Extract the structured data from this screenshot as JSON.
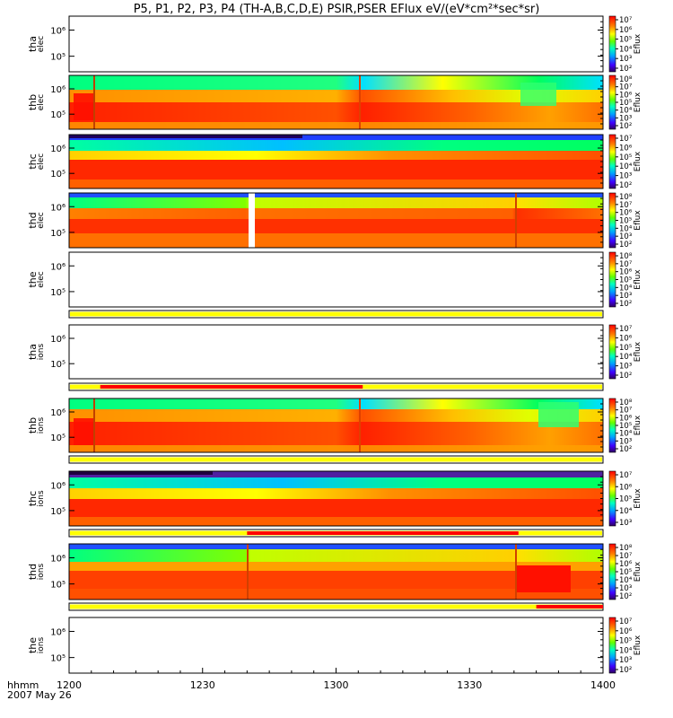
{
  "chart_data": {
    "type": "heatmap",
    "title": "P5, P1, P2, P3, P4 (TH-A,B,C,D,E) PSIR,PSER EFlux eV/(eV*cm²*sec*sr)",
    "x_axis": {
      "label_top": "hhmm",
      "label_bottom": "2007 May 26",
      "ticks": [
        "1200",
        "1230",
        "1300",
        "1330",
        "1400"
      ]
    },
    "colorbar_label": "Eflux",
    "panels": [
      {
        "name": "tha-elec",
        "line1": "tha",
        "line2": "elec",
        "has_data": false,
        "yticks": [
          "10⁶",
          "10⁵"
        ],
        "cbar_ticks": [
          "10⁷",
          "10⁶",
          "10⁵",
          "10⁴",
          "10³",
          "10²"
        ]
      },
      {
        "name": "thb-elec",
        "line1": "thb",
        "line2": "elec",
        "has_data": true,
        "yticks": [
          "10⁶",
          "10⁵"
        ],
        "cbar_ticks": [
          "10⁸",
          "10⁷",
          "10⁶",
          "10⁵",
          "10⁴",
          "10³",
          "10²"
        ]
      },
      {
        "name": "thc-elec",
        "line1": "thc",
        "line2": "elec",
        "has_data": true,
        "yticks": [
          "10⁶",
          "10⁵"
        ],
        "cbar_ticks": [
          "10⁷",
          "10⁶",
          "10⁵",
          "10⁴",
          "10³",
          "10²"
        ]
      },
      {
        "name": "thd-elec",
        "line1": "thd",
        "line2": "elec",
        "has_data": true,
        "yticks": [
          "10⁶",
          "10⁵"
        ],
        "cbar_ticks": [
          "10⁸",
          "10⁷",
          "10⁶",
          "10⁵",
          "10⁴",
          "10³",
          "10²"
        ]
      },
      {
        "name": "the-elec",
        "line1": "the",
        "line2": "elec",
        "has_data": false,
        "yticks": [
          "10⁶",
          "10⁵"
        ],
        "cbar_ticks": [
          "10⁸",
          "10⁷",
          "10⁶",
          "10⁵",
          "10⁴",
          "10³",
          "10²"
        ]
      },
      {
        "name": "tha-ions",
        "line1": "tha",
        "line2": "ions",
        "has_data": false,
        "yticks": [
          "10⁶",
          "10⁵"
        ],
        "cbar_ticks": [
          "10⁷",
          "10⁶",
          "10⁵",
          "10⁴",
          "10³",
          "10²"
        ]
      },
      {
        "name": "thb-ions",
        "line1": "thb",
        "line2": "ions",
        "has_data": true,
        "yticks": [
          "10⁶",
          "10⁵"
        ],
        "cbar_ticks": [
          "10⁸",
          "10⁷",
          "10⁶",
          "10⁵",
          "10⁴",
          "10³",
          "10²"
        ]
      },
      {
        "name": "thc-ions",
        "line1": "thc",
        "line2": "ions",
        "has_data": true,
        "yticks": [
          "10⁶",
          "10⁵"
        ],
        "cbar_ticks": [
          "10⁷",
          "10⁶",
          "10⁵",
          "10⁴",
          "10³"
        ]
      },
      {
        "name": "thd-ions",
        "line1": "thd",
        "line2": "ions",
        "has_data": true,
        "yticks": [
          "10⁶",
          "10⁵"
        ],
        "cbar_ticks": [
          "10⁸",
          "10⁷",
          "10⁶",
          "10⁵",
          "10⁴",
          "10³",
          "10²"
        ]
      },
      {
        "name": "the-ions",
        "line1": "the",
        "line2": "ions",
        "has_data": false,
        "yticks": [
          "10⁶",
          "10⁵"
        ],
        "cbar_ticks": [
          "10⁷",
          "10⁶",
          "10⁵",
          "10⁴",
          "10³",
          "10²"
        ]
      }
    ],
    "mode_bars": [
      {
        "name": "mode-bar-1",
        "segments": [
          {
            "start_min": 0,
            "end_min": 120,
            "color": "#ffff00"
          }
        ]
      },
      {
        "name": "mode-bar-2",
        "segments": [
          {
            "start_min": 0,
            "end_min": 120,
            "color": "#ffff00"
          },
          {
            "start_min": 7,
            "end_min": 66,
            "color": "#ff0000"
          }
        ]
      },
      {
        "name": "mode-bar-3",
        "segments": [
          {
            "start_min": 0,
            "end_min": 120,
            "color": "#ffff00"
          }
        ]
      },
      {
        "name": "mode-bar-4",
        "segments": [
          {
            "start_min": 0,
            "end_min": 120,
            "color": "#ffff00"
          },
          {
            "start_min": 40,
            "end_min": 101,
            "color": "#ff0000"
          }
        ]
      },
      {
        "name": "mode-bar-5",
        "segments": [
          {
            "start_min": 0,
            "end_min": 120,
            "color": "#ffff00"
          },
          {
            "start_min": 105,
            "end_min": 120,
            "color": "#ff0000"
          }
        ]
      }
    ],
    "colors": {
      "red": "#ff1e00",
      "orange": "#ff6a00",
      "amber": "#ffa500",
      "yellow": "#ffff00",
      "lime": "#b0ff00",
      "green": "#00ff60",
      "cyan": "#00ffff",
      "skyblue": "#00b4ff",
      "blue": "#0030ff",
      "violet": "#6000c0"
    }
  }
}
